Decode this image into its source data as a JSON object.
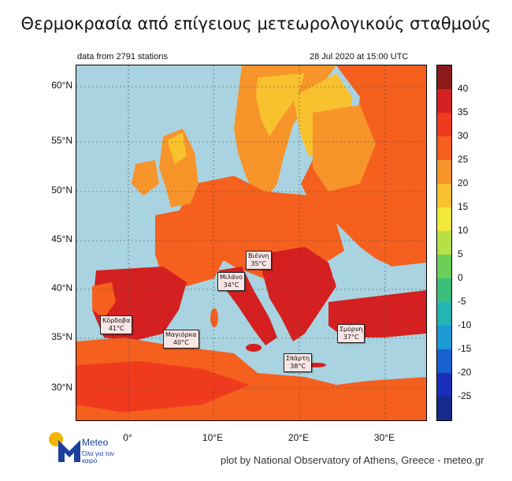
{
  "title": "Θερμοκρασία από επίγειους μετεωρολογικούς σταθμούς",
  "subtitle_left": "data from 2791 stations",
  "subtitle_right": "28 Jul 2020 at 15:00 UTC",
  "y_ticks": [
    "60°N",
    "55°N",
    "50°N",
    "45°N",
    "40°N",
    "35°N",
    "30°N"
  ],
  "x_ticks": [
    "0°",
    "10°E",
    "20°E",
    "30°E"
  ],
  "colorbar": {
    "labels": [
      "40",
      "35",
      "30",
      "25",
      "20",
      "15",
      "10",
      "5",
      "0",
      "-5",
      "-10",
      "-15",
      "-20",
      "-25"
    ],
    "colors": [
      "#8b1a1a",
      "#d42020",
      "#f03a1e",
      "#f5601f",
      "#f7942a",
      "#f8c12e",
      "#f1e83a",
      "#b7e046",
      "#6ccf57",
      "#3bbf7b",
      "#24b6b4",
      "#1d9ad4",
      "#1a5fd0",
      "#1a2fb8",
      "#152a8a"
    ]
  },
  "cities": [
    {
      "name": "Βιέννη",
      "temp": "35°C"
    },
    {
      "name": "Μιλάνο",
      "temp": "34°C"
    },
    {
      "name": "Κόρδοβα",
      "temp": "41°C"
    },
    {
      "name": "Μαγιόρκα",
      "temp": "40°C"
    },
    {
      "name": "Σμύρνη",
      "temp": "37°C"
    },
    {
      "name": "Σπάρτη",
      "temp": "38°C"
    }
  ],
  "logo": {
    "name": "Meteo",
    "tagline": "Όλα για τον καιρό"
  },
  "credit": "plot by National Observatory of Athens, Greece - meteo.gr"
}
